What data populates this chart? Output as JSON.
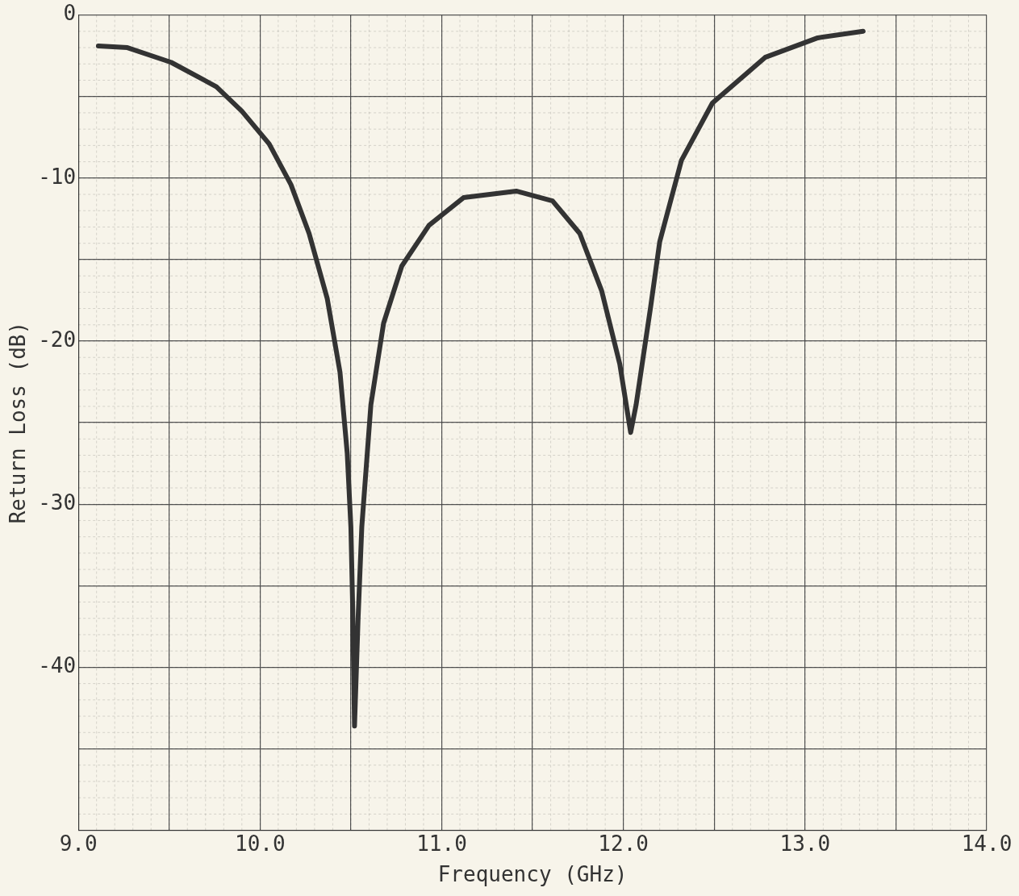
{
  "chart_data": {
    "type": "line",
    "xlabel": "Frequency (GHz)",
    "ylabel": "Return Loss (dB)",
    "xlim": [
      9,
      14
    ],
    "ylim": [
      -50,
      0
    ],
    "xticks": [
      {
        "value": 9,
        "label": "9.0"
      },
      {
        "value": 9.5,
        "label": null
      },
      {
        "value": 10,
        "label": "10.0"
      },
      {
        "value": 10.5,
        "label": null
      },
      {
        "value": 11,
        "label": "11.0"
      },
      {
        "value": 11.5,
        "label": null
      },
      {
        "value": 12,
        "label": "12.0"
      },
      {
        "value": 12.5,
        "label": null
      },
      {
        "value": 13,
        "label": "13.0"
      },
      {
        "value": 13.5,
        "label": null
      },
      {
        "value": 14,
        "label": "14.0"
      }
    ],
    "yticks": [
      0,
      {
        "value": -5,
        "label": null
      },
      -10,
      {
        "value": -15,
        "label": null
      },
      -20,
      {
        "value": -25,
        "label": null
      },
      -30,
      {
        "value": -35,
        "label": null
      },
      -40,
      {
        "value": -45,
        "label": null
      },
      {
        "value": -50,
        "label": null
      }
    ],
    "grid": true,
    "marker": "none",
    "line_style": "solid",
    "legend": false,
    "series": [
      {
        "color": "#333333",
        "x": [
          9.11,
          9.27,
          9.51,
          9.76,
          9.9,
          10.05,
          10.17,
          10.27,
          10.37,
          10.44,
          10.48,
          10.5,
          10.51,
          10.52,
          10.54,
          10.56,
          10.61,
          10.68,
          10.78,
          10.93,
          11.12,
          11.41,
          11.61,
          11.76,
          11.88,
          11.98,
          12.04,
          12.07,
          12.15,
          12.2,
          12.32,
          12.49,
          12.78,
          13.07,
          13.32
        ],
        "values": [
          -1.9,
          -2,
          -2.9,
          -4.4,
          -5.9,
          -7.9,
          -10.4,
          -13.4,
          -17.4,
          -21.9,
          -26.9,
          -31.4,
          -36.4,
          -43.6,
          -36.9,
          -31.4,
          -23.9,
          -18.9,
          -15.4,
          -12.9,
          -11.2,
          -10.8,
          -11.4,
          -13.4,
          -16.9,
          -21.4,
          -25.6,
          -23.9,
          -17.9,
          -13.9,
          -8.9,
          -5.4,
          -2.6,
          -1.4,
          -1
        ]
      }
    ]
  }
}
